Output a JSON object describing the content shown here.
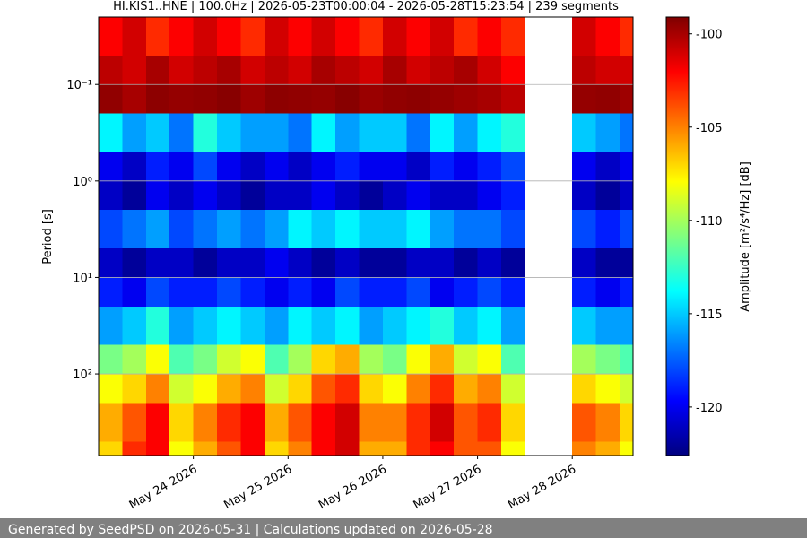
{
  "chart_data": {
    "type": "heatmap",
    "title": "HI.KIS1..HNE | 100.0Hz | 2026-05-23T00:00:04 - 2026-05-28T15:23:54 | 239 segments",
    "ylabel": "Period [s]",
    "colorbar_label": "Amplitude [m²/s⁴/Hz] [dB]",
    "footer": "Generated by SeedPSD on 2026-05-31 | Calculations updated on 2026-05-28",
    "colormap": "jet",
    "yscale": "log",
    "yinverted": true,
    "grid": "y",
    "xlim": [
      "2026-05-23T00:00:04",
      "2026-05-28T15:23:54"
    ],
    "xticks": [
      {
        "value": "2026-05-24",
        "label": "May 24 2026"
      },
      {
        "value": "2026-05-25",
        "label": "May 25 2026"
      },
      {
        "value": "2026-05-26",
        "label": "May 26 2026"
      },
      {
        "value": "2026-05-27",
        "label": "May 27 2026"
      },
      {
        "value": "2026-05-28",
        "label": "May 28 2026"
      }
    ],
    "ylim": [
      0.02,
      700
    ],
    "yticks": [
      {
        "value": 0.1,
        "label": "10⁻¹"
      },
      {
        "value": 1,
        "label": "10⁰"
      },
      {
        "value": 10,
        "label": "10¹"
      },
      {
        "value": 100,
        "label": "10²"
      }
    ],
    "clim": [
      -122.6,
      -99.1
    ],
    "cticks": [
      -100,
      -105,
      -110,
      -115,
      -120
    ],
    "xbins": [
      "2026-05-23T00:00:04",
      "2026-05-23T06:00",
      "2026-05-23T12:00",
      "2026-05-23T18:00",
      "2026-05-24T00:00",
      "2026-05-24T06:00",
      "2026-05-24T12:00",
      "2026-05-24T18:00",
      "2026-05-25T00:00",
      "2026-05-25T06:00",
      "2026-05-25T12:00",
      "2026-05-25T18:00",
      "2026-05-26T00:00",
      "2026-05-26T06:00",
      "2026-05-26T12:00",
      "2026-05-26T18:00",
      "2026-05-27T00:00",
      "2026-05-27T06:00",
      "2026-05-27T12:00",
      "2026-05-27T18:00",
      "2026-05-28T00:00",
      "2026-05-28T06:00",
      "2026-05-28T12:00",
      "2026-05-28T15:23:54"
    ],
    "ybins": [
      0.02,
      0.05,
      0.1,
      0.2,
      0.5,
      1,
      2,
      5,
      10,
      20,
      50,
      100,
      200,
      500,
      700
    ],
    "values": [
      [
        -102,
        -101,
        -103,
        -102,
        -101,
        -102,
        -103,
        -101,
        -102,
        -101,
        -102,
        -103,
        -101,
        -102,
        -101,
        -103,
        -102,
        -103,
        null,
        null,
        -101,
        -102,
        -103
      ],
      [
        -100.5,
        -101,
        -100,
        -101,
        -100.5,
        -100,
        -101,
        -100.5,
        -101,
        -100,
        -100.5,
        -101,
        -100,
        -101,
        -100.5,
        -100,
        -101,
        -102,
        null,
        null,
        -100.5,
        -101,
        -101
      ],
      [
        -99.5,
        -100,
        -99.4,
        -99.6,
        -99.5,
        -99.3,
        -99.8,
        -99.4,
        -99.5,
        -99.6,
        -99.3,
        -99.7,
        -99.5,
        -99.4,
        -99.6,
        -99.8,
        -100,
        -100.5,
        null,
        null,
        -99.6,
        -99.5,
        -99.8
      ],
      [
        -114,
        -116,
        -115,
        -117,
        -113,
        -115,
        -116,
        -116,
        -117,
        -114,
        -116,
        -115,
        -115,
        -117,
        -114,
        -116,
        -114,
        -113,
        null,
        null,
        -115,
        -116,
        -117
      ],
      [
        -120,
        -121,
        -119,
        -120,
        -118,
        -120,
        -121,
        -120,
        -121,
        -120,
        -119,
        -120,
        -120,
        -121,
        -119,
        -120,
        -119,
        -118,
        null,
        null,
        -120,
        -121,
        -120
      ],
      [
        -121,
        -122,
        -120,
        -121,
        -120,
        -121,
        -122,
        -121,
        -121,
        -120,
        -121,
        -122,
        -121,
        -120,
        -121,
        -121,
        -120,
        -119,
        null,
        null,
        -121,
        -122,
        -121
      ],
      [
        -118,
        -117,
        -116,
        -118,
        -117,
        -116,
        -117,
        -116,
        -114,
        -115,
        -114,
        -115,
        -115,
        -114,
        -116,
        -117,
        -117,
        -118,
        null,
        null,
        -118,
        -119,
        -118
      ],
      [
        -121,
        -122,
        -121,
        -121,
        -122,
        -121,
        -121,
        -120,
        -121,
        -122,
        -121,
        -122,
        -122,
        -121,
        -121,
        -122,
        -121,
        -122,
        null,
        null,
        -121,
        -122,
        -122
      ],
      [
        -119,
        -120,
        -118,
        -119,
        -119,
        -118,
        -119,
        -120,
        -119,
        -120,
        -118,
        -119,
        -119,
        -118,
        -120,
        -119,
        -118,
        -119,
        null,
        null,
        -119,
        -120,
        -119
      ],
      [
        -116,
        -115,
        -113,
        -116,
        -115,
        -114,
        -115,
        -116,
        -114,
        -115,
        -114,
        -116,
        -115,
        -114,
        -113,
        -115,
        -114,
        -116,
        null,
        null,
        -115,
        -116,
        -116
      ],
      [
        -111,
        -110,
        -108,
        -112,
        -111,
        -109,
        -108,
        -112,
        -110,
        -107,
        -106,
        -110,
        -111,
        -108,
        -106,
        -109,
        -108,
        -112,
        null,
        null,
        -110,
        -111,
        -112
      ],
      [
        -108,
        -107,
        -105,
        -109,
        -108,
        -106,
        -105,
        -109,
        -107,
        -104,
        -103,
        -107,
        -108,
        -105,
        -103,
        -106,
        -105,
        -109,
        null,
        null,
        -107,
        -108,
        -109
      ],
      [
        -106,
        -104,
        -102,
        -107,
        -105,
        -103,
        -102,
        -106,
        -104,
        -102,
        -101,
        -105,
        -105,
        -103,
        -101,
        -104,
        -103,
        -107,
        null,
        null,
        -104,
        -105,
        -107
      ],
      [
        -107,
        -103,
        -102,
        -108,
        -106,
        -104,
        -102,
        -107,
        -105,
        -102,
        -101,
        -106,
        -106,
        -103,
        -102,
        -104,
        -104,
        -108,
        null,
        null,
        -105,
        -106,
        -108
      ]
    ]
  }
}
